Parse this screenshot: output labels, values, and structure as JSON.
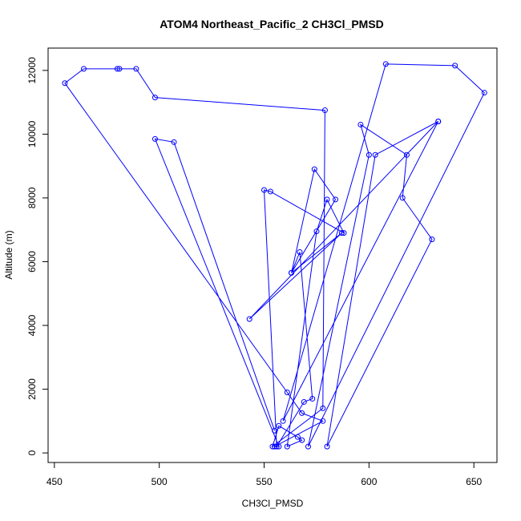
{
  "chart_data": {
    "type": "line",
    "title": "ATOM4 Northeast_Pacific_2 CH3Cl_PMSD",
    "xlabel": "CH3Cl_PMSD",
    "ylabel": "Altitude (m)",
    "xlim": [
      447,
      661
    ],
    "ylim": [
      -300,
      12700
    ],
    "xticks": [
      450,
      500,
      550,
      600,
      650
    ],
    "yticks": [
      0,
      2000,
      4000,
      6000,
      8000,
      10000,
      12000
    ],
    "grid": false,
    "legend": "none",
    "series": [
      {
        "color": "#0000ff",
        "x": [
          555,
          507,
          498,
          557,
          555,
          578,
          568,
          561,
          455,
          464,
          480,
          481,
          489,
          498,
          579,
          578,
          554,
          557,
          566,
          568,
          561,
          575,
          580,
          588,
          553,
          550,
          556,
          569,
          573,
          567,
          563,
          574,
          584,
          563,
          587,
          543,
          633,
          559,
          608,
          641,
          655,
          571,
          600,
          596,
          618,
          616,
          630,
          580,
          603,
          633
        ],
        "y": [
          700,
          9750,
          9850,
          200,
          200,
          1000,
          1250,
          1900,
          11600,
          12050,
          12050,
          12050,
          12050,
          11150,
          10750,
          1400,
          200,
          850,
          500,
          400,
          200,
          6950,
          7950,
          6900,
          8200,
          8250,
          200,
          1600,
          1700,
          6300,
          5650,
          8900,
          7950,
          5650,
          6900,
          4200,
          10400,
          1000,
          12200,
          12150,
          11300,
          200,
          9350,
          10300,
          9350,
          8000,
          6700,
          200,
          9350,
          10400
        ]
      }
    ]
  }
}
